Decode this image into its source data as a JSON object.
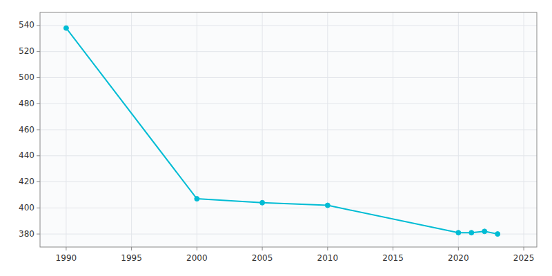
{
  "chart_data": {
    "type": "line",
    "x": [
      1990,
      2000,
      2005,
      2010,
      2020,
      2021,
      2022,
      2023
    ],
    "values": [
      538,
      407,
      404,
      402,
      381,
      381,
      382,
      380
    ],
    "color": "#00bcd4",
    "marker": "circle",
    "xlim": [
      1988,
      2026
    ],
    "ylim": [
      370,
      550
    ],
    "xticks": [
      1990,
      1995,
      2000,
      2005,
      2010,
      2015,
      2020,
      2025
    ],
    "yticks": [
      380,
      400,
      420,
      440,
      460,
      480,
      500,
      520,
      540
    ],
    "grid": true
  }
}
